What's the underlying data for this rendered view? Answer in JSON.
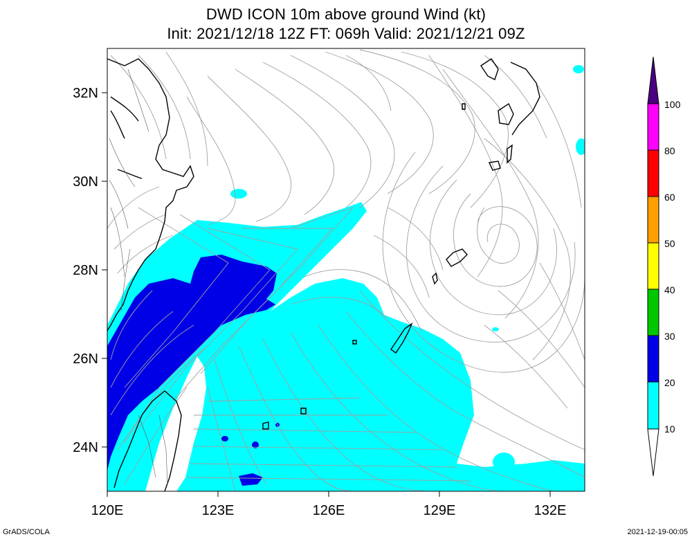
{
  "title": {
    "line1": "DWD ICON 10m above ground Wind (kt)",
    "line2": "Init: 2021/12/18 12Z  FT: 069h  Valid: 2021/12/21 09Z"
  },
  "footer": {
    "left": "GrADS/COLA",
    "right": "2021-12-19-00:05"
  },
  "map": {
    "lon_ticks": [
      "120E",
      "123E",
      "126E",
      "129E",
      "132E"
    ],
    "lat_ticks": [
      "32N",
      "30N",
      "28N",
      "26N",
      "24N"
    ]
  },
  "colorbar": {
    "labels": [
      "10",
      "20",
      "30",
      "40",
      "50",
      "60",
      "80",
      "100"
    ],
    "colors": {
      "10-20": "#00ffff",
      "20-30": "#0000e6",
      "30-40": "#00c800",
      "40-50": "#ffff00",
      "50-60": "#ffa000",
      "60-80": "#ff0000",
      "80-100": "#ff00ff",
      "100+": "#4a0080"
    }
  }
}
